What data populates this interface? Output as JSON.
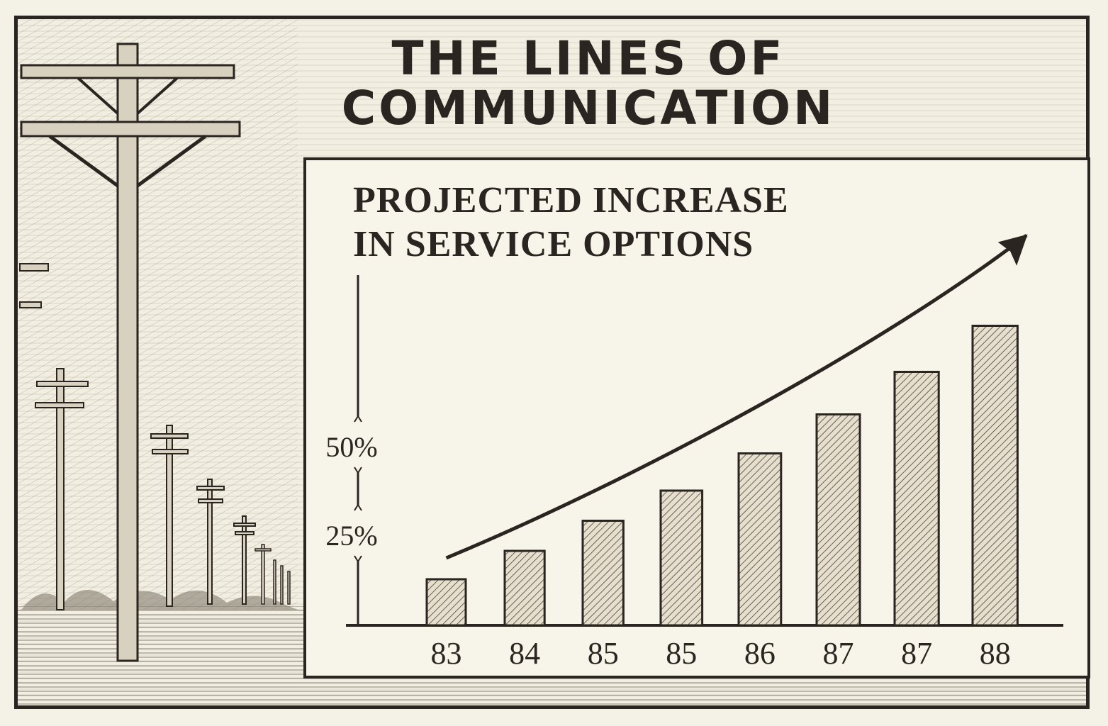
{
  "title": {
    "line1": "THE LINES OF",
    "line2": "COMMUNICATION"
  },
  "chart_data": {
    "type": "bar",
    "title_line1": "PROJECTED INCREASE",
    "title_line2": "IN SERVICE OPTIONS",
    "categories": [
      "83",
      "84",
      "85",
      "85",
      "86",
      "87",
      "87",
      "88"
    ],
    "values": [
      13,
      21,
      29.5,
      38,
      48.5,
      59.5,
      71.5,
      84.5
    ],
    "y_ticks": [
      {
        "label": "25%",
        "value": 25
      },
      {
        "label": "50%",
        "value": 50
      }
    ],
    "ylim": [
      0,
      100
    ],
    "trend_arrow": true,
    "grid": false,
    "colors": {
      "ink": "#2a2520",
      "bar_fill": "#e6dfcd",
      "paper": "#f7f4ea"
    }
  }
}
